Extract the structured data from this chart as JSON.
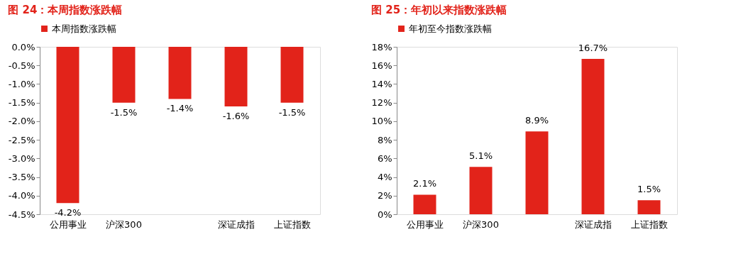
{
  "chart_data": [
    {
      "type": "bar",
      "title": "图 24：本周指数涨跌幅",
      "categories": [
        "公用事业",
        "沪深300",
        null,
        "深证成指",
        "上证指数"
      ],
      "series": [
        {
          "name": "本周指数涨跌幅",
          "color": "#e2231a",
          "values": [
            -4.2,
            -1.5,
            -1.4,
            -1.6,
            -1.5
          ]
        }
      ],
      "value_labels": [
        "-4.2%",
        "-1.5%",
        "-1.4%",
        "-1.6%",
        "-1.5%"
      ],
      "ylim": [
        -4.5,
        0
      ],
      "yticks": [
        {
          "value": 0,
          "label": "0.0%"
        },
        {
          "value": -0.5,
          "label": "-0.5%"
        },
        {
          "value": -1,
          "label": "-1.0%"
        },
        {
          "value": -1.5,
          "label": "-1.5%"
        },
        {
          "value": -2,
          "label": "-2.0%"
        },
        {
          "value": -2.5,
          "label": "-2.5%"
        },
        {
          "value": -3,
          "label": "-3.0%"
        },
        {
          "value": -3.5,
          "label": "-3.5%"
        },
        {
          "value": -4,
          "label": "-4.0%"
        },
        {
          "value": -4.5,
          "label": "-4.5%"
        }
      ],
      "legend": "top",
      "grid": false
    },
    {
      "type": "bar",
      "title": "图 25：年初以来指数涨跌幅",
      "categories": [
        "公用事业",
        "沪深300",
        null,
        "深证成指",
        "上证指数"
      ],
      "series": [
        {
          "name": "年初至今指数涨跌幅",
          "color": "#e2231a",
          "values": [
            2.1,
            5.1,
            8.9,
            16.7,
            1.5
          ]
        }
      ],
      "value_labels": [
        "2.1%",
        "5.1%",
        "8.9%",
        "16.7%",
        "1.5%"
      ],
      "ylim": [
        0,
        18
      ],
      "yticks": [
        {
          "value": 0,
          "label": "0%"
        },
        {
          "value": 2,
          "label": "2%"
        },
        {
          "value": 4,
          "label": "4%"
        },
        {
          "value": 6,
          "label": "6%"
        },
        {
          "value": 8,
          "label": "8%"
        },
        {
          "value": 10,
          "label": "10%"
        },
        {
          "value": 12,
          "label": "12%"
        },
        {
          "value": 14,
          "label": "14%"
        },
        {
          "value": 16,
          "label": "16%"
        },
        {
          "value": 18,
          "label": "18%"
        }
      ],
      "legend": "top",
      "grid": false
    }
  ]
}
